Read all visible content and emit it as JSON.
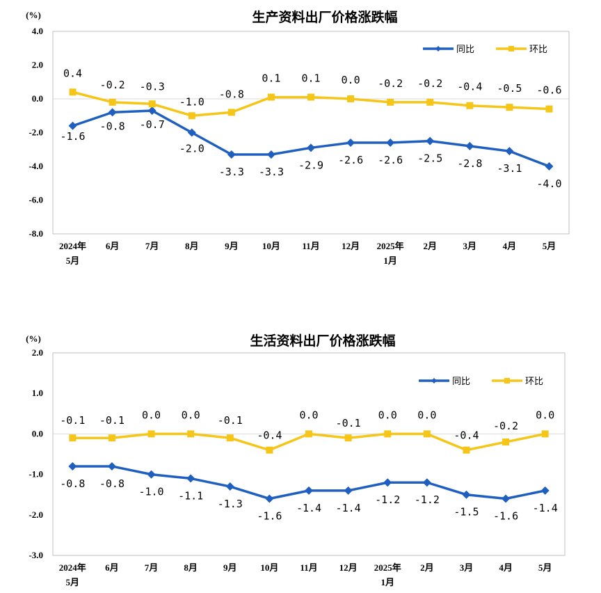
{
  "chart_data": [
    {
      "type": "line",
      "title": "生产资料出厂价格涨跌幅",
      "unit": "(%)",
      "categories": [
        [
          "2024年",
          "5月"
        ],
        [
          "6月"
        ],
        [
          "7月"
        ],
        [
          "8月"
        ],
        [
          "9月"
        ],
        [
          "10月"
        ],
        [
          "11月"
        ],
        [
          "12月"
        ],
        [
          "2025年",
          "1月"
        ],
        [
          "2月"
        ],
        [
          "3月"
        ],
        [
          "4月"
        ],
        [
          "5月"
        ]
      ],
      "ylim": [
        -8.0,
        4.0
      ],
      "yticks": [
        "4.0",
        "2.0",
        "0.0",
        "-2.0",
        "-4.0",
        "-6.0",
        "-8.0"
      ],
      "series": [
        {
          "name": "同比",
          "color": "#1f5fbf",
          "marker": "diamond",
          "values": [
            -1.6,
            -0.8,
            -0.7,
            -2.0,
            -3.3,
            -3.3,
            -2.9,
            -2.6,
            -2.6,
            -2.5,
            -2.8,
            -3.1,
            -4.0
          ],
          "labels": [
            "-1.6",
            "-0.8",
            "-0.7",
            "-2.0",
            "-3.3",
            "-3.3",
            "-2.9",
            "-2.6",
            "-2.6",
            "-2.5",
            "-2.8",
            "-3.1",
            "-4.0"
          ]
        },
        {
          "name": "环比",
          "color": "#f5c518",
          "marker": "square",
          "values": [
            0.4,
            -0.2,
            -0.3,
            -1.0,
            -0.8,
            0.1,
            0.1,
            0.0,
            -0.2,
            -0.2,
            -0.4,
            -0.5,
            -0.6
          ],
          "labels": [
            "0.4",
            "-0.2",
            "-0.3",
            "-1.0",
            "-0.8",
            "0.1",
            "0.1",
            "0.0",
            "-0.2",
            "-0.2",
            "-0.4",
            "-0.5",
            "-0.6"
          ]
        }
      ],
      "legend": "top-right",
      "grid": false
    },
    {
      "type": "line",
      "title": "生活资料出厂价格涨跌幅",
      "unit": "(%)",
      "categories": [
        [
          "2024年",
          "5月"
        ],
        [
          "6月"
        ],
        [
          "7月"
        ],
        [
          "8月"
        ],
        [
          "9月"
        ],
        [
          "10月"
        ],
        [
          "11月"
        ],
        [
          "12月"
        ],
        [
          "2025年",
          "1月"
        ],
        [
          "2月"
        ],
        [
          "3月"
        ],
        [
          "4月"
        ],
        [
          "5月"
        ]
      ],
      "ylim": [
        -3.0,
        2.0
      ],
      "yticks": [
        "2.0",
        "1.0",
        "0.0",
        "-1.0",
        "-2.0",
        "-3.0"
      ],
      "series": [
        {
          "name": "同比",
          "color": "#1f5fbf",
          "marker": "diamond",
          "values": [
            -0.8,
            -0.8,
            -1.0,
            -1.1,
            -1.3,
            -1.6,
            -1.4,
            -1.4,
            -1.2,
            -1.2,
            -1.5,
            -1.6,
            -1.4
          ],
          "labels": [
            "-0.8",
            "-0.8",
            "-1.0",
            "-1.1",
            "-1.3",
            "-1.6",
            "-1.4",
            "-1.4",
            "-1.2",
            "-1.2",
            "-1.5",
            "-1.6",
            "-1.4"
          ]
        },
        {
          "name": "环比",
          "color": "#f5c518",
          "marker": "square",
          "values": [
            -0.1,
            -0.1,
            0.0,
            0.0,
            -0.1,
            -0.4,
            0.0,
            -0.1,
            0.0,
            0.0,
            -0.4,
            -0.2,
            0.0
          ],
          "labels": [
            "-0.1",
            "-0.1",
            "0.0",
            "0.0",
            "-0.1",
            "-0.4",
            "0.0",
            "-0.1",
            "0.0",
            "0.0",
            "-0.4",
            "-0.2",
            "0.0"
          ]
        }
      ],
      "legend": "top-right",
      "grid": false
    }
  ]
}
